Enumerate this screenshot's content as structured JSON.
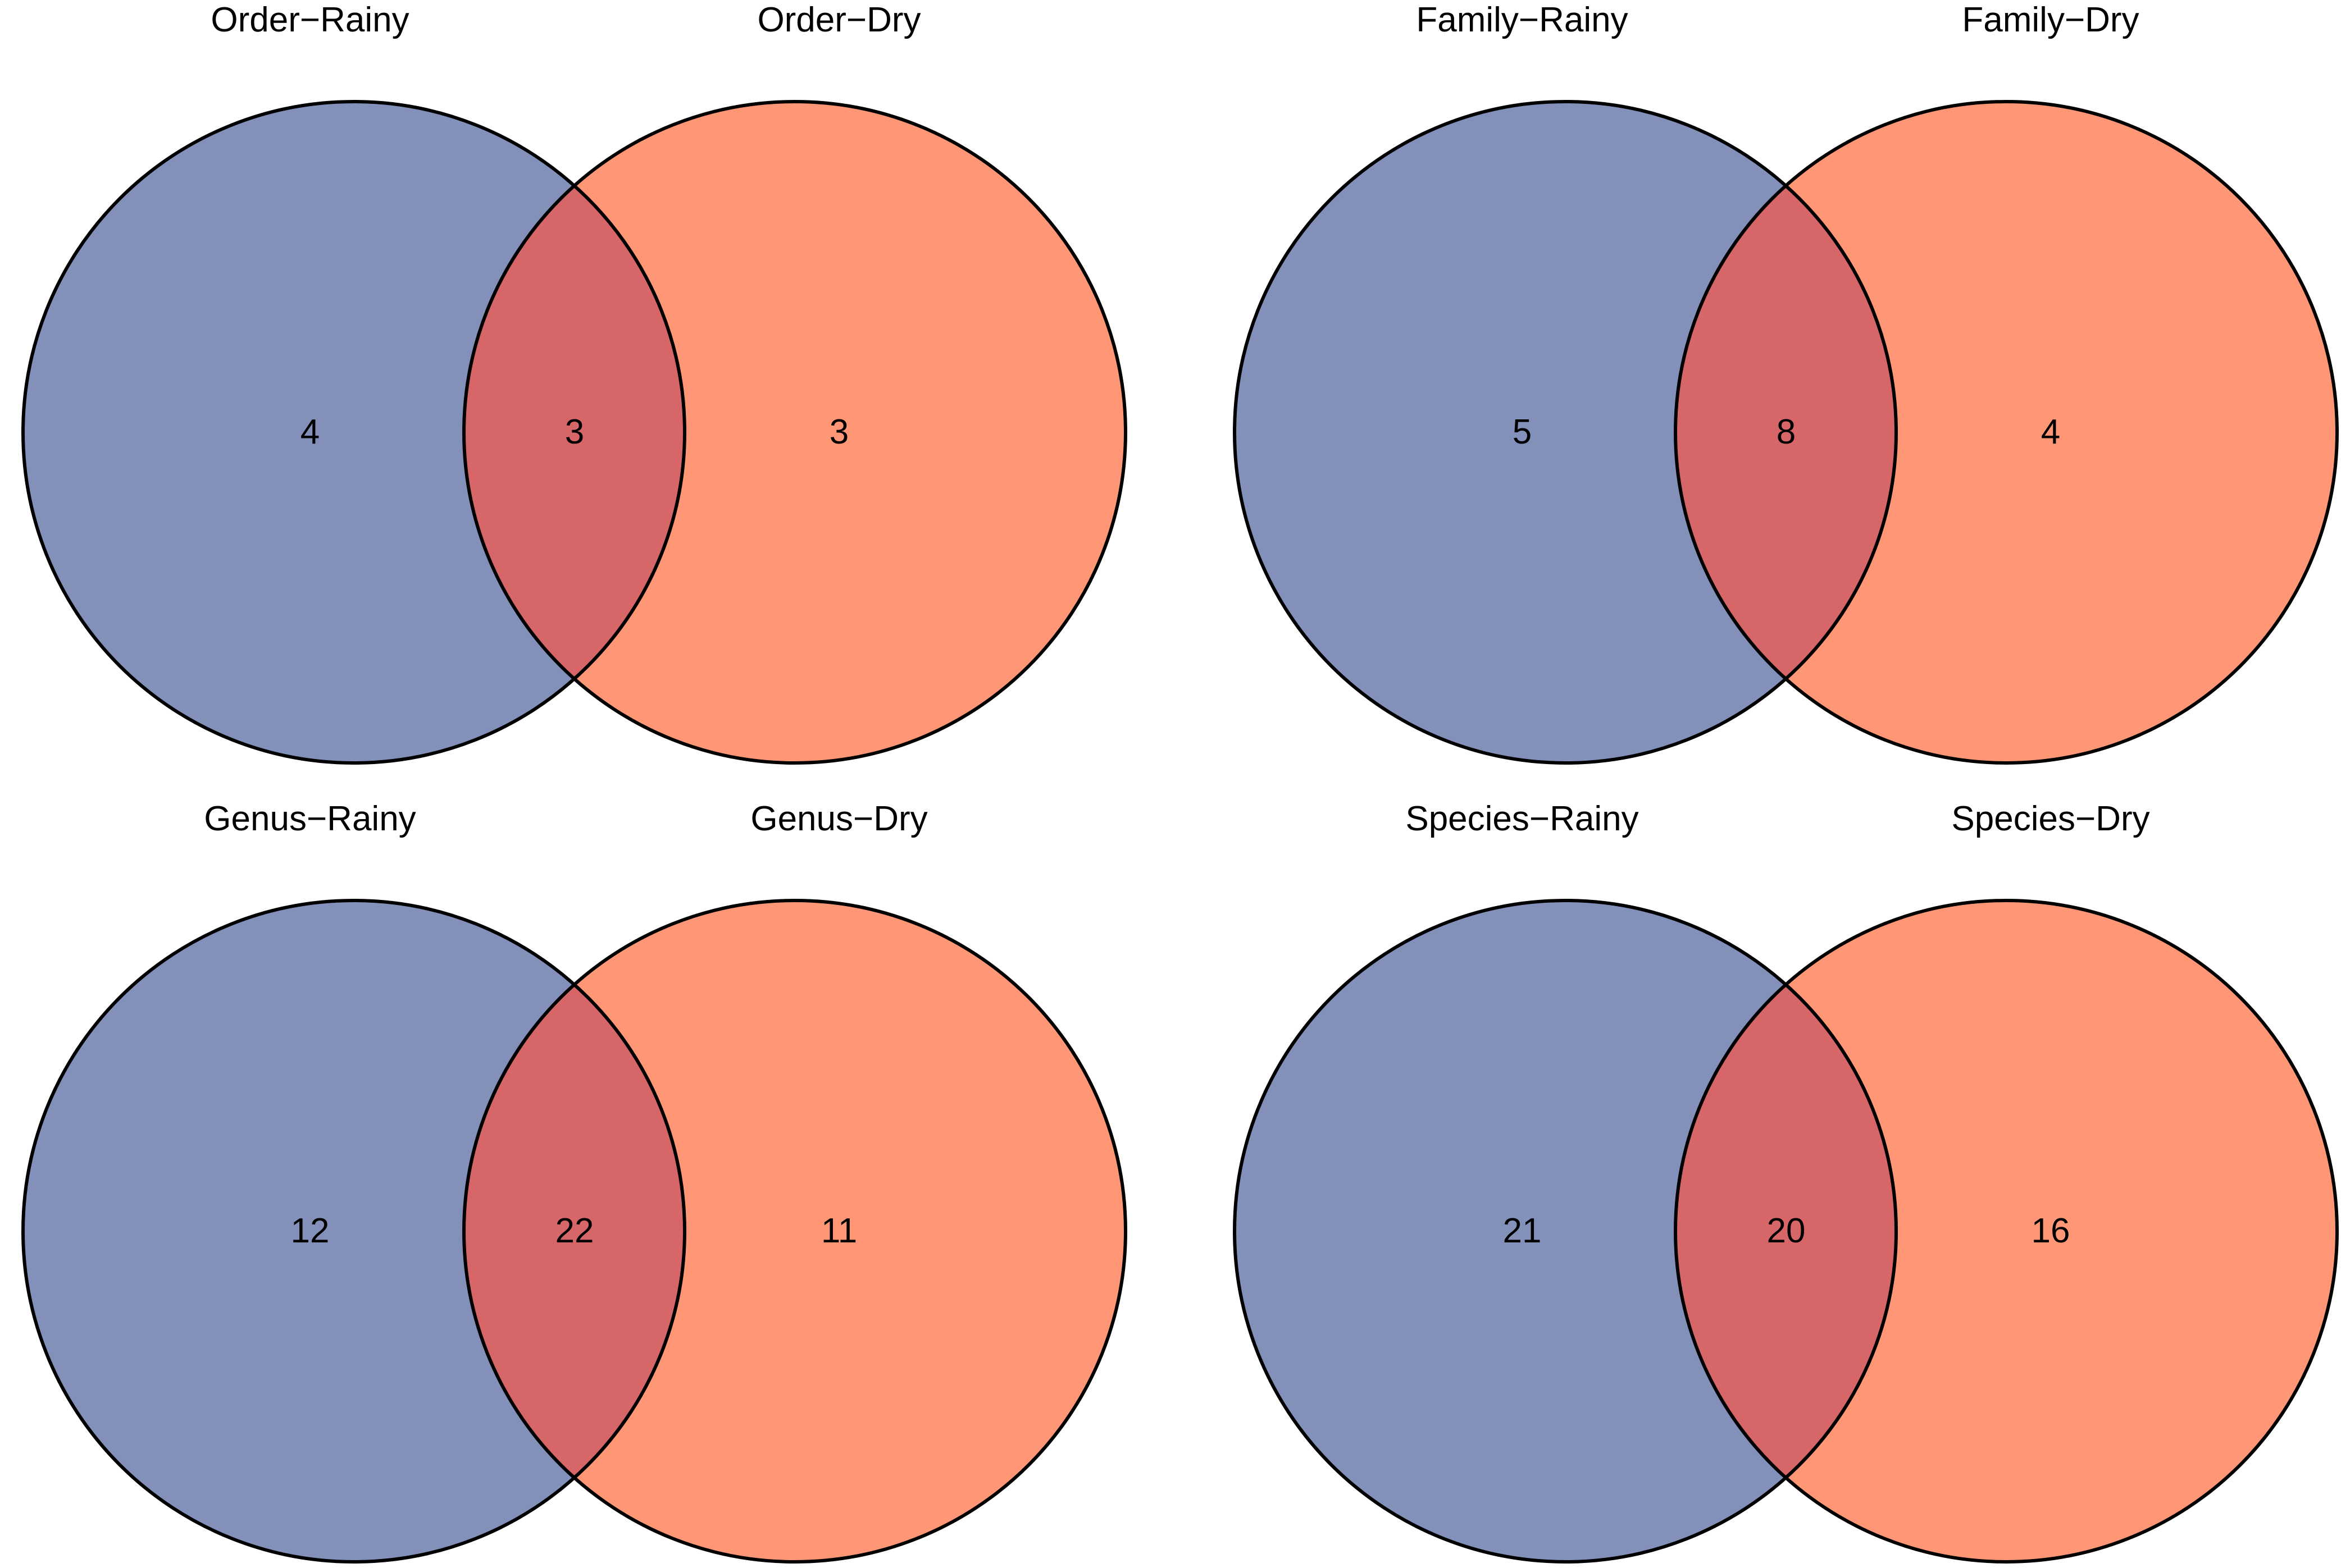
{
  "colors": {
    "set_a_fill": "#8290BA",
    "set_b_fill": "#FF9776",
    "overlap_fill": "#D66668",
    "outline": "#000000",
    "background": "#FFFFFF"
  },
  "venn_diagrams": [
    {
      "label_a": "Order−Rainy",
      "label_b": "Order−Dry",
      "only_a": "4",
      "both": "3",
      "only_b": "3"
    },
    {
      "label_a": "Family−Rainy",
      "label_b": "Family−Dry",
      "only_a": "5",
      "both": "8",
      "only_b": "4"
    },
    {
      "label_a": "Genus−Rainy",
      "label_b": "Genus−Dry",
      "only_a": "12",
      "both": "22",
      "only_b": "11"
    },
    {
      "label_a": "Species−Rainy",
      "label_b": "Species−Dry",
      "only_a": "21",
      "both": "20",
      "only_b": "16"
    }
  ]
}
